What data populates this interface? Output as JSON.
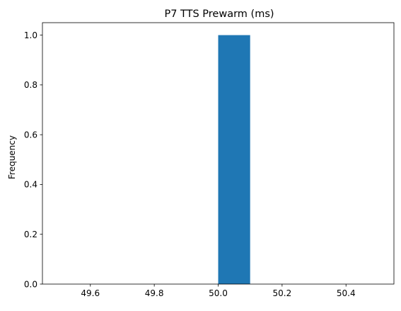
{
  "chart_data": {
    "type": "bar",
    "title": "P7 TTS Prewarm (ms)",
    "xlabel": "",
    "ylabel": "Frequency",
    "xlim": [
      49.45,
      50.55
    ],
    "ylim": [
      0,
      1.05
    ],
    "bins": [
      {
        "x0": 49.5,
        "x1": 49.6,
        "count": 0
      },
      {
        "x0": 49.6,
        "x1": 49.7,
        "count": 0
      },
      {
        "x0": 49.7,
        "x1": 49.8,
        "count": 0
      },
      {
        "x0": 49.8,
        "x1": 49.9,
        "count": 0
      },
      {
        "x0": 49.9,
        "x1": 50.0,
        "count": 0
      },
      {
        "x0": 50.0,
        "x1": 50.1,
        "count": 1
      },
      {
        "x0": 50.1,
        "x1": 50.2,
        "count": 0
      },
      {
        "x0": 50.2,
        "x1": 50.3,
        "count": 0
      },
      {
        "x0": 50.3,
        "x1": 50.4,
        "count": 0
      },
      {
        "x0": 50.4,
        "x1": 50.5,
        "count": 0
      }
    ],
    "xticks": [
      49.6,
      49.8,
      50.0,
      50.2,
      50.4
    ],
    "xtick_labels": [
      "49.6",
      "49.8",
      "50.0",
      "50.2",
      "50.4"
    ],
    "yticks": [
      0.0,
      0.2,
      0.4,
      0.6,
      0.8,
      1.0
    ],
    "ytick_labels": [
      "0.0",
      "0.2",
      "0.4",
      "0.6",
      "0.8",
      "1.0"
    ],
    "grid": false,
    "bar_color": "#1f77b4"
  }
}
